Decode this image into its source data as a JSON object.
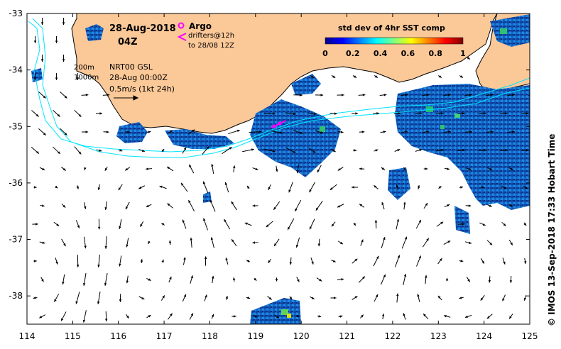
{
  "header": {
    "date": "28-Aug-2018",
    "time": "04Z"
  },
  "argo_legend": {
    "label": "Argo",
    "marker_color": "#ff00ff"
  },
  "drifters_legend": {
    "line1": "drifters@12h",
    "line2": "to 28/08 12Z",
    "marker_color": "#ff00ff"
  },
  "contour_legend": {
    "c200": "200m",
    "c1000": "1000m",
    "color": "#00e5ff"
  },
  "current_legend": {
    "product": "NRT00 GSL",
    "date": "28-Aug 00:00Z",
    "scale": "0.5m/s (1kt 24h)"
  },
  "colorbar": {
    "title": "std dev of 4hr SST comp",
    "ticks": [
      "0",
      "0.2",
      "0.4",
      "0.6",
      "0.8",
      "1"
    ],
    "range": [
      0,
      1
    ],
    "colors": [
      "#00008f",
      "#0000ff",
      "#0080ff",
      "#00ffff",
      "#80ff80",
      "#ffff00",
      "#ff8000",
      "#ff0000",
      "#800000"
    ]
  },
  "axes": {
    "x_ticks": [
      "114",
      "115",
      "116",
      "117",
      "118",
      "119",
      "120",
      "121",
      "122",
      "123",
      "124",
      "125"
    ],
    "y_ticks": [
      "-33",
      "-34",
      "-35",
      "-36",
      "-37",
      "-38"
    ],
    "lon_range": [
      114,
      125
    ],
    "lat_range": [
      -38.5,
      -33
    ]
  },
  "colors": {
    "land": "#fbc898",
    "coastline": "#000000",
    "ocean": "#ffffff"
  },
  "credit": "© IMOS 13-Sep-2018 17:33 Hobart Time"
}
